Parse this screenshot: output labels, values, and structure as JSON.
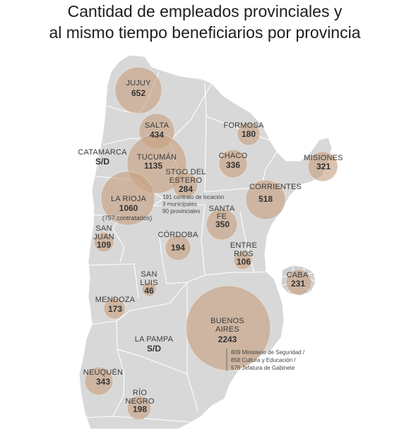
{
  "title": {
    "line1": "Cantidad de empleados provinciales y",
    "line2": "al mismo tiempo beneficiarios por provincia"
  },
  "colors": {
    "map": "#d8d8d8",
    "bubble": "#c79f80",
    "text": "#333333"
  },
  "provinces": {
    "jujuy": {
      "name": "JUJUY",
      "value": "652"
    },
    "salta": {
      "name": "SALTA",
      "value": "434"
    },
    "formosa": {
      "name": "FORMOSA",
      "value": "180"
    },
    "catamarca": {
      "name": "CATAMARCA",
      "value": "S/D"
    },
    "tucuman": {
      "name": "TUCUMÁN",
      "value": "1135"
    },
    "chaco": {
      "name": "CHACO",
      "value": "336"
    },
    "misiones": {
      "name": "MISIONES",
      "value": "321"
    },
    "santiago_del_estero": {
      "name_line1": "STGO DEL",
      "name_line2": "ESTERO",
      "value": "284",
      "notes": [
        "191 contrato de locación",
        "3 municipales",
        "90 provinciales"
      ]
    },
    "la_rioja": {
      "name": "LA RIOJA",
      "value": "1060",
      "note": "(757 contratados)"
    },
    "corrientes": {
      "name": "CORRIENTES",
      "value": "518"
    },
    "santa_fe": {
      "name_line1": "SANTA",
      "name_line2": "FE",
      "value": "350"
    },
    "san_juan": {
      "name_line1": "SAN",
      "name_line2": "JUAN",
      "value": "109"
    },
    "cordoba": {
      "name": "CÓRDOBA",
      "value": "194"
    },
    "entre_rios": {
      "name_line1": "ENTRE",
      "name_line2": "RIOS",
      "value": "106"
    },
    "san_luis": {
      "name_line1": "SAN",
      "name_line2": "LUIS",
      "value": "46"
    },
    "caba": {
      "name": "CABA",
      "value": "231"
    },
    "mendoza": {
      "name": "MENDOZA",
      "value": "173"
    },
    "buenos_aires": {
      "name_line1": "BUENOS",
      "name_line2": "AIRES",
      "value": "2243",
      "notes": [
        "809 Ministerio de Seguridad /",
        "858 Cultura y Educación /",
        "576 Jefatura de Gabinete"
      ]
    },
    "la_pampa": {
      "name": "LA PAMPA",
      "value": "S/D"
    },
    "neuquen": {
      "name": "NEUQUÉN",
      "value": "343"
    },
    "rio_negro": {
      "name_line1": "RÍO",
      "name_line2": "NEGRO",
      "value": "198"
    }
  }
}
